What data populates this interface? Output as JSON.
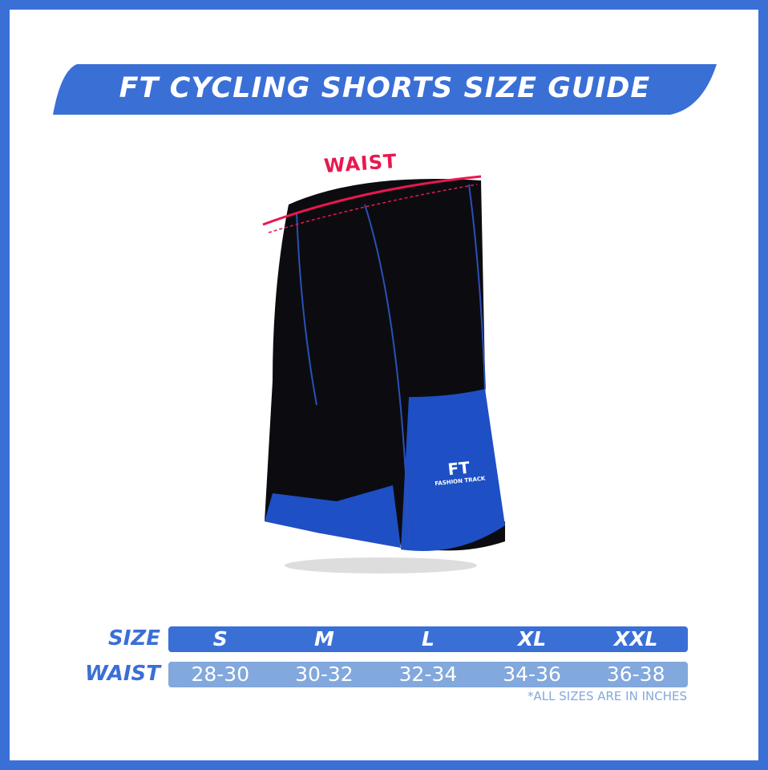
{
  "title": "FT CYCLING SHORTS SIZE GUIDE",
  "waist_annotation": "WAIST",
  "logo": {
    "mark": "FT",
    "brand": "FASHION TRACK"
  },
  "table": {
    "size_label": "SIZE",
    "waist_label": "WAIST",
    "sizes": [
      "S",
      "M",
      "L",
      "XL",
      "XXL"
    ],
    "waists": [
      "28-30",
      "30-32",
      "32-34",
      "34-36",
      "36-38"
    ]
  },
  "note": "*ALL SIZES ARE IN INCHES",
  "colors": {
    "brand_blue": "#3a6fd6",
    "light_blue": "#82a8dd",
    "accent_pink": "#e8184f"
  }
}
